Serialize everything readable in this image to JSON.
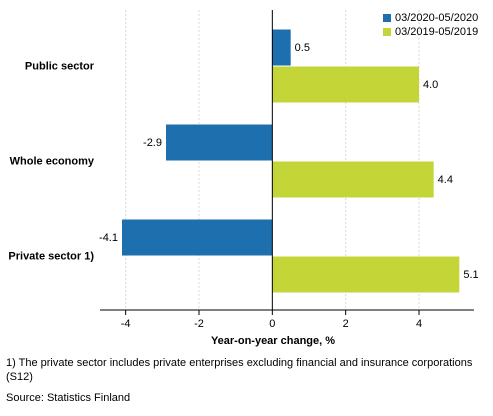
{
  "chart_data": {
    "type": "hbar",
    "categories": [
      "Public sector",
      "Whole economy",
      "Private sector 1)"
    ],
    "series": [
      {
        "name": "03/2020-05/2020",
        "color": "#1d6fae",
        "values": [
          0.5,
          -2.9,
          -4.1
        ],
        "value_labels": [
          "0.5",
          "-2.9",
          "-4.1"
        ]
      },
      {
        "name": "03/2019-05/2019",
        "color": "#c4d637",
        "values": [
          4.0,
          4.4,
          5.1
        ],
        "value_labels": [
          "4.0",
          "4.4",
          "5.1"
        ]
      }
    ],
    "xlim": [
      -4.7,
      5.5
    ],
    "xticks": [
      -4,
      -2,
      0,
      2,
      4
    ],
    "grid": true,
    "xlabel": "Year-on-year change, %",
    "legend": "top-right",
    "footnote": "1) The private sector includes private enterprises excluding financial and insurance corporations (S12)",
    "source": "Source: Statistics Finland"
  }
}
